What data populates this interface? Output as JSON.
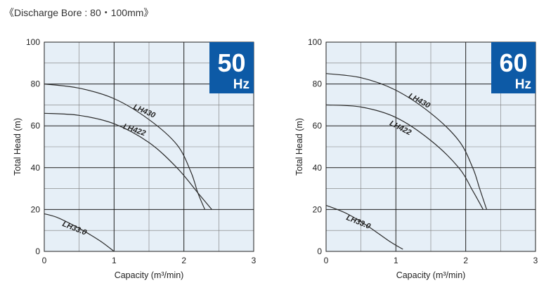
{
  "caption": "《Discharge Bore : 80・100mm》",
  "colors": {
    "plot_bg": "#e6eff7",
    "grid": "#1f1f1f",
    "curve": "#2b2b2b",
    "badge": "#0d5aa6"
  },
  "chart_data": [
    {
      "type": "line",
      "badge": {
        "value": "50",
        "unit": "Hz"
      },
      "xlabel": "Capacity (m³/min)",
      "ylabel": "Total Head (m)",
      "xlim": [
        0,
        3
      ],
      "ylim": [
        0,
        100
      ],
      "xticks": [
        "0",
        "1",
        "2",
        "3"
      ],
      "yticks": [
        "0",
        "20",
        "40",
        "60",
        "80",
        "100"
      ],
      "grid": true,
      "series": [
        {
          "name": "LH430",
          "x": [
            0,
            0.5,
            1.0,
            1.5,
            1.9,
            2.1,
            2.2,
            2.3
          ],
          "y": [
            80,
            78,
            73,
            63,
            51,
            38,
            28,
            20
          ]
        },
        {
          "name": "LH422",
          "x": [
            0,
            0.5,
            1.0,
            1.5,
            1.9,
            2.2,
            2.4
          ],
          "y": [
            66,
            65,
            61,
            52,
            40,
            28,
            20
          ]
        },
        {
          "name": "LH33.0",
          "x": [
            0,
            0.2,
            0.5,
            0.8,
            1.0
          ],
          "y": [
            18,
            16,
            11,
            5,
            0
          ]
        }
      ]
    },
    {
      "type": "line",
      "badge": {
        "value": "60",
        "unit": "Hz"
      },
      "xlabel": "Capacity (m³/min)",
      "ylabel": "Total Head (m)",
      "xlim": [
        0,
        3
      ],
      "ylim": [
        0,
        100
      ],
      "xticks": [
        "0",
        "1",
        "2",
        "3"
      ],
      "yticks": [
        "0",
        "20",
        "40",
        "60",
        "80",
        "100"
      ],
      "grid": true,
      "series": [
        {
          "name": "LH430",
          "x": [
            0,
            0.5,
            1.0,
            1.5,
            1.9,
            2.1,
            2.2,
            2.3
          ],
          "y": [
            85,
            83,
            77,
            66,
            53,
            40,
            30,
            20
          ]
        },
        {
          "name": "LH422",
          "x": [
            0,
            0.5,
            1.0,
            1.5,
            1.9,
            2.1,
            2.25
          ],
          "y": [
            70,
            69,
            64,
            53,
            40,
            29,
            20
          ]
        },
        {
          "name": "LH33.0",
          "x": [
            0,
            0.3,
            0.6,
            0.9,
            1.1
          ],
          "y": [
            22,
            18,
            12,
            5,
            1
          ]
        }
      ]
    }
  ]
}
